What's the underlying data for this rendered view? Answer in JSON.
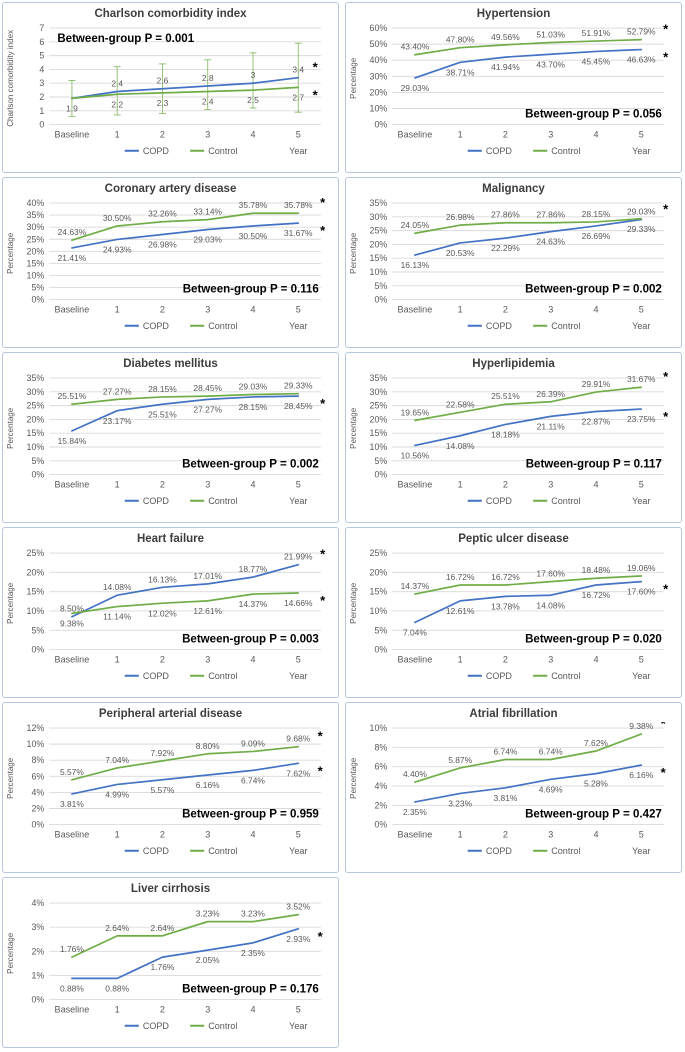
{
  "figure": {
    "legend": {
      "copd_label": "COPD",
      "control_label": "Control"
    },
    "x_categories": [
      "Baseline",
      "1",
      "2",
      "3",
      "4",
      "5"
    ],
    "x_unit_label": "Year",
    "significance_marker": "*",
    "colors": {
      "copd_line": "#4472C4",
      "control_line": "#70AD47",
      "data_label_text": "#595959",
      "axis_text": "#595959",
      "title_text": "#3d3d3d",
      "p_value_text": "#000000",
      "gridline": "#D9D9D9",
      "panel_border": "#B5C7DC",
      "error_bar": "#70AD47",
      "star": "#000000"
    }
  },
  "chart_data": [
    {
      "type": "line",
      "title": "Charlson comorbidity index",
      "ylabel": "Charlson comorbidity index",
      "ylim": [
        0,
        7
      ],
      "ytick_step": 1,
      "ytick_suffix": "",
      "grid": true,
      "p_label": "Between-group P = 0.001",
      "p_position": "top-left",
      "error_bars": [
        [
          0.6,
          3.2
        ],
        [
          0.7,
          4.2
        ],
        [
          0.8,
          4.4
        ],
        [
          1.1,
          4.7
        ],
        [
          1.2,
          5.2
        ],
        [
          0.9,
          5.9
        ]
      ],
      "series": [
        {
          "name": "COPD",
          "values": [
            1.9,
            2.4,
            2.6,
            2.8,
            3,
            3.4
          ],
          "labels": [
            "",
            "2.4",
            "2.6",
            "2.8",
            "3",
            "3.4"
          ],
          "label_sides": [
            "above",
            "above",
            "above",
            "above",
            "above",
            "above"
          ],
          "final_star": true
        },
        {
          "name": "Control",
          "values": [
            1.9,
            2.2,
            2.3,
            2.4,
            2.5,
            2.7
          ],
          "labels": [
            "1.9",
            "2.2",
            "2.3",
            "2.4",
            "2.5",
            "2.7"
          ],
          "label_sides": [
            "below",
            "below",
            "below",
            "below",
            "below",
            "below"
          ],
          "final_star": true
        }
      ]
    },
    {
      "type": "line",
      "title": "Hypertension",
      "ylabel": "Percentage",
      "ylim": [
        0,
        60
      ],
      "ytick_step": 10,
      "ytick_suffix": "%",
      "grid": true,
      "p_label": "Between-group P = 0.056",
      "p_position": "bottom-right",
      "series": [
        {
          "name": "COPD",
          "values": [
            29.03,
            38.71,
            41.94,
            43.7,
            45.45,
            46.63
          ],
          "labels": [
            "29.03%",
            "38.71%",
            "41.94%",
            "43.70%",
            "45.45%",
            "46.63%"
          ],
          "label_sides": [
            "below",
            "below",
            "below",
            "below",
            "below",
            "below"
          ],
          "final_star": true
        },
        {
          "name": "Control",
          "values": [
            43.4,
            47.8,
            49.56,
            51.03,
            51.91,
            52.79
          ],
          "labels": [
            "43.40%",
            "47.80%",
            "49.56%",
            "51.03%",
            "51.91%",
            "52.79%"
          ],
          "label_sides": [
            "above",
            "above",
            "above",
            "above",
            "above",
            "above"
          ],
          "final_star": true
        }
      ]
    },
    {
      "type": "line",
      "title": "Coronary artery disease",
      "ylabel": "Percentage",
      "ylim": [
        0,
        40
      ],
      "ytick_step": 5,
      "ytick_suffix": "%",
      "grid": true,
      "p_label": "Between-group P = 0.116",
      "p_position": "bottom-right",
      "series": [
        {
          "name": "COPD",
          "values": [
            21.41,
            24.93,
            26.98,
            29.03,
            30.5,
            31.67
          ],
          "labels": [
            "21.41%",
            "24.93%",
            "26.98%",
            "29.03%",
            "30.50%",
            "31.67%"
          ],
          "label_sides": [
            "below",
            "below",
            "below",
            "below",
            "below",
            "below"
          ],
          "final_star": true
        },
        {
          "name": "Control",
          "values": [
            24.63,
            30.5,
            32.26,
            33.14,
            35.78,
            35.78
          ],
          "labels": [
            "24.63%",
            "30.50%",
            "32.26%",
            "33.14%",
            "35.78%",
            "35.78%"
          ],
          "label_sides": [
            "above",
            "above",
            "above",
            "above",
            "above",
            "above"
          ],
          "final_star": true
        }
      ]
    },
    {
      "type": "line",
      "title": "Malignancy",
      "ylabel": "Percentage",
      "ylim": [
        0,
        35
      ],
      "ytick_step": 5,
      "ytick_suffix": "%",
      "grid": true,
      "p_label": "Between-group P = 0.002",
      "p_position": "bottom-right",
      "series": [
        {
          "name": "COPD",
          "values": [
            16.13,
            20.53,
            22.29,
            24.63,
            26.69,
            29.03
          ],
          "labels": [
            "16.13%",
            "20.53%",
            "22.29%",
            "24.63%",
            "26.69%",
            "29.03%"
          ],
          "label_sides": [
            "below",
            "below",
            "below",
            "below",
            "below",
            "above"
          ],
          "final_star": true
        },
        {
          "name": "Control",
          "values": [
            24.05,
            26.98,
            27.86,
            27.86,
            28.15,
            29.33
          ],
          "labels": [
            "24.05%",
            "26.98%",
            "27.86%",
            "27.86%",
            "28.15%",
            "29.33%"
          ],
          "label_sides": [
            "above",
            "above",
            "above",
            "above",
            "above",
            "below"
          ],
          "final_star": false
        }
      ]
    },
    {
      "type": "line",
      "title": "Diabetes mellitus",
      "ylabel": "Percentage",
      "ylim": [
        0,
        35
      ],
      "ytick_step": 5,
      "ytick_suffix": "%",
      "grid": true,
      "p_label": "Between-group P = 0.002",
      "p_position": "bottom-right",
      "series": [
        {
          "name": "COPD",
          "values": [
            15.84,
            23.17,
            25.51,
            27.27,
            28.15,
            28.45
          ],
          "labels": [
            "15.84%",
            "23.17%",
            "25.51%",
            "27.27%",
            "28.15%",
            "28.45%"
          ],
          "label_sides": [
            "below",
            "below",
            "below",
            "below",
            "below",
            "below"
          ],
          "final_star": true
        },
        {
          "name": "Control",
          "values": [
            25.51,
            27.27,
            28.15,
            28.45,
            29.03,
            29.33
          ],
          "labels": [
            "25.51%",
            "27.27%",
            "28.15%",
            "28.45%",
            "29.03%",
            "29.33%"
          ],
          "label_sides": [
            "above",
            "above",
            "above",
            "above",
            "above",
            "above"
          ],
          "final_star": false
        }
      ]
    },
    {
      "type": "line",
      "title": "Hyperlipidemia",
      "ylabel": "Percentage",
      "ylim": [
        0,
        35
      ],
      "ytick_step": 5,
      "ytick_suffix": "%",
      "grid": true,
      "p_label": "Between-group P = 0.117",
      "p_position": "bottom-right",
      "series": [
        {
          "name": "COPD",
          "values": [
            10.56,
            14.08,
            18.18,
            21.11,
            22.87,
            23.75
          ],
          "labels": [
            "10.56%",
            "14.08%",
            "18.18%",
            "21.11%",
            "22.87%",
            "23.75%"
          ],
          "label_sides": [
            "below",
            "below",
            "below",
            "below",
            "below",
            "below"
          ],
          "final_star": true
        },
        {
          "name": "Control",
          "values": [
            19.65,
            22.58,
            25.51,
            26.39,
            29.91,
            31.67
          ],
          "labels": [
            "19.65%",
            "22.58%",
            "25.51%",
            "26.39%",
            "29.91%",
            "31.67%"
          ],
          "label_sides": [
            "above",
            "above",
            "above",
            "above",
            "above",
            "above"
          ],
          "final_star": true
        }
      ]
    },
    {
      "type": "line",
      "title": "Heart failure",
      "ylabel": "Percentage",
      "ylim": [
        0,
        25
      ],
      "ytick_step": 5,
      "ytick_suffix": "%",
      "grid": true,
      "p_label": "Between-group P = 0.003",
      "p_position": "bottom-right",
      "series": [
        {
          "name": "COPD",
          "values": [
            8.5,
            14.08,
            16.13,
            17.01,
            18.77,
            21.99
          ],
          "labels": [
            "8.50%",
            "14.08%",
            "16.13%",
            "17.01%",
            "18.77%",
            "21.99%"
          ],
          "label_sides": [
            "above",
            "above",
            "above",
            "above",
            "above",
            "above"
          ],
          "final_star": true
        },
        {
          "name": "Control",
          "values": [
            9.38,
            11.14,
            12.02,
            12.61,
            14.37,
            14.66
          ],
          "labels": [
            "9.38%",
            "11.14%",
            "12.02%",
            "12.61%",
            "14.37%",
            "14.66%"
          ],
          "label_sides": [
            "below",
            "below",
            "below",
            "below",
            "below",
            "below"
          ],
          "final_star": true
        }
      ]
    },
    {
      "type": "line",
      "title": "Peptic ulcer disease",
      "ylabel": "Percentage",
      "ylim": [
        0,
        25
      ],
      "ytick_step": 5,
      "ytick_suffix": "%",
      "grid": true,
      "p_label": "Between-group P = 0.020",
      "p_position": "bottom-right",
      "series": [
        {
          "name": "COPD",
          "values": [
            7.04,
            12.61,
            13.78,
            14.08,
            16.72,
            17.6
          ],
          "labels": [
            "7.04%",
            "12.61%",
            "13.78%",
            "14.08%",
            "16.72%",
            "17.60%"
          ],
          "label_sides": [
            "below",
            "below",
            "below",
            "below",
            "below",
            "below"
          ],
          "final_star": true
        },
        {
          "name": "Control",
          "values": [
            14.37,
            16.72,
            16.72,
            17.6,
            18.48,
            19.06
          ],
          "labels": [
            "14.37%",
            "16.72%",
            "16.72%",
            "17.60%",
            "18.48%",
            "19.06%"
          ],
          "label_sides": [
            "above",
            "above",
            "above",
            "above",
            "above",
            "above"
          ],
          "final_star": false
        }
      ]
    },
    {
      "type": "line",
      "title": "Peripheral arterial disease",
      "ylabel": "Percentage",
      "ylim": [
        0,
        12
      ],
      "ytick_step": 2,
      "ytick_suffix": "%",
      "grid": true,
      "p_label": "Between-group P = 0.959",
      "p_position": "bottom-right",
      "series": [
        {
          "name": "COPD",
          "values": [
            3.81,
            4.99,
            5.57,
            6.16,
            6.74,
            7.62
          ],
          "labels": [
            "3.81%",
            "4.99%",
            "5.57%",
            "6.16%",
            "6.74%",
            "7.62%"
          ],
          "label_sides": [
            "below",
            "below",
            "below",
            "below",
            "below",
            "below"
          ],
          "final_star": true
        },
        {
          "name": "Control",
          "values": [
            5.57,
            7.04,
            7.92,
            8.8,
            9.09,
            9.68
          ],
          "labels": [
            "5.57%",
            "7.04%",
            "7.92%",
            "8.80%",
            "9.09%",
            "9.68%"
          ],
          "label_sides": [
            "above",
            "above",
            "above",
            "above",
            "above",
            "above"
          ],
          "final_star": true
        }
      ]
    },
    {
      "type": "line",
      "title": "Atrial fibrillation",
      "ylabel": "Percentage",
      "ylim": [
        0,
        10
      ],
      "ytick_step": 2,
      "ytick_suffix": "%",
      "grid": true,
      "p_label": "Between-group P = 0.427",
      "p_position": "bottom-right",
      "series": [
        {
          "name": "COPD",
          "values": [
            2.35,
            3.23,
            3.81,
            4.69,
            5.28,
            6.16
          ],
          "labels": [
            "2.35%",
            "3.23%",
            "3.81%",
            "4.69%",
            "5.28%",
            "6.16%"
          ],
          "label_sides": [
            "below",
            "below",
            "below",
            "below",
            "below",
            "below"
          ],
          "final_star": true
        },
        {
          "name": "Control",
          "values": [
            4.4,
            5.87,
            6.74,
            6.74,
            7.62,
            9.38
          ],
          "labels": [
            "4.40%",
            "5.87%",
            "6.74%",
            "6.74%",
            "7.62%",
            "9.38%"
          ],
          "label_sides": [
            "above",
            "above",
            "above",
            "above",
            "above",
            "above"
          ],
          "final_star": true
        }
      ]
    },
    {
      "type": "line",
      "title": "Liver cirrhosis",
      "ylabel": "Percentage",
      "ylim": [
        0,
        4
      ],
      "ytick_step": 1,
      "ytick_suffix": "%",
      "grid": true,
      "p_label": "Between-group P = 0.176",
      "p_position": "bottom-right",
      "series": [
        {
          "name": "COPD",
          "values": [
            0.88,
            0.88,
            1.76,
            2.05,
            2.35,
            2.93
          ],
          "labels": [
            "0.88%",
            "0.88%",
            "1.76%",
            "2.05%",
            "2.35%",
            "2.93%"
          ],
          "label_sides": [
            "below",
            "below",
            "below",
            "below",
            "below",
            "below"
          ],
          "final_star": true
        },
        {
          "name": "Control",
          "values": [
            1.76,
            2.64,
            2.64,
            3.23,
            3.23,
            3.52
          ],
          "labels": [
            "1.76%",
            "2.64%",
            "2.64%",
            "3.23%",
            "3.23%",
            "3.52%"
          ],
          "label_sides": [
            "above",
            "above",
            "above",
            "above",
            "above",
            "above"
          ],
          "final_star": false
        }
      ]
    }
  ]
}
